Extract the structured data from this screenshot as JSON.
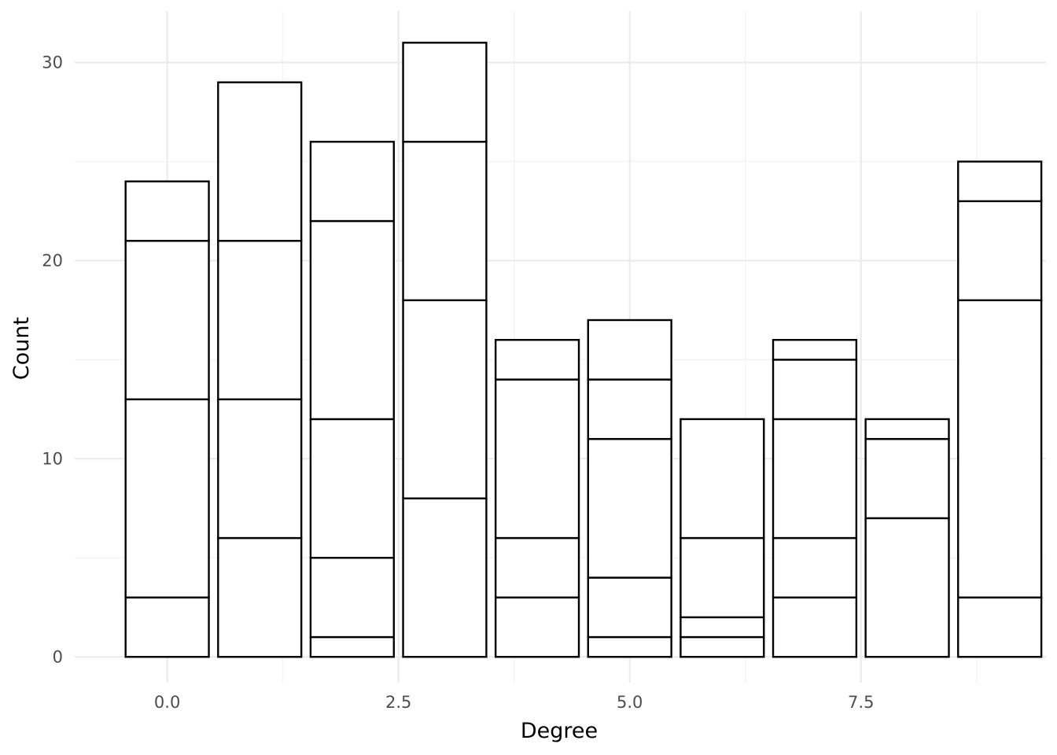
{
  "chart_data": {
    "type": "bar",
    "stacked": true,
    "xlabel": "Degree",
    "ylabel": "Count",
    "xlim": [
      -1.0,
      9.5
    ],
    "ylim": [
      -1.3,
      32.6
    ],
    "xticks": [
      "0.0",
      "2.5",
      "5.0",
      "7.5"
    ],
    "xtick_values": [
      0,
      2.5,
      5,
      7.5
    ],
    "yticks": [
      "0",
      "10",
      "20",
      "30"
    ],
    "ytick_values": [
      0,
      10,
      20,
      30
    ],
    "bar_width": 0.9,
    "grid": true,
    "fill_color": "#ffffff",
    "outline_color": "#000000",
    "bars": [
      {
        "x": 0,
        "boundaries": [
          3,
          13,
          21,
          24
        ]
      },
      {
        "x": 1,
        "boundaries": [
          6,
          13,
          21,
          29
        ]
      },
      {
        "x": 2,
        "boundaries": [
          1,
          5,
          12,
          22,
          26
        ]
      },
      {
        "x": 3,
        "boundaries": [
          8,
          18,
          26,
          31
        ]
      },
      {
        "x": 4,
        "boundaries": [
          3,
          6,
          14,
          16
        ]
      },
      {
        "x": 5,
        "boundaries": [
          1,
          4,
          11,
          14,
          17
        ]
      },
      {
        "x": 6,
        "boundaries": [
          1,
          2,
          6,
          12
        ]
      },
      {
        "x": 7,
        "boundaries": [
          3,
          6,
          12,
          15,
          16
        ]
      },
      {
        "x": 8,
        "boundaries": [
          7,
          11,
          12
        ]
      },
      {
        "x": 9,
        "boundaries": [
          3,
          18,
          23,
          25
        ]
      }
    ]
  }
}
